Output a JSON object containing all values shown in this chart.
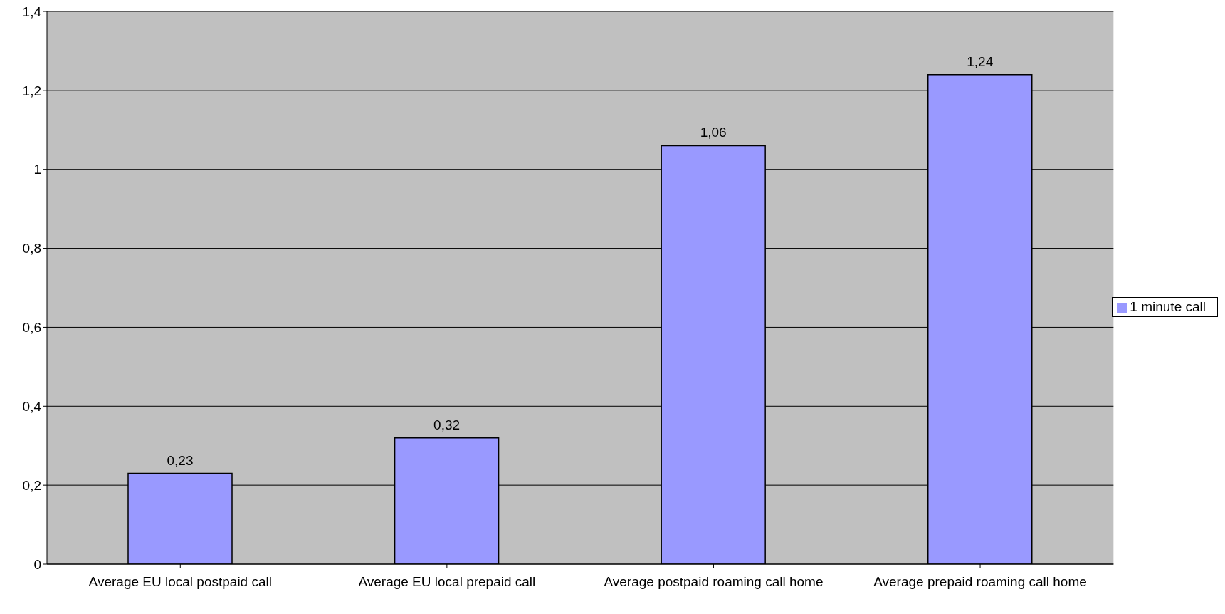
{
  "chart_data": {
    "type": "bar",
    "categories": [
      "Average EU local postpaid call",
      "Average EU local prepaid call",
      "Average postpaid roaming call home",
      "Average prepaid roaming call home"
    ],
    "series": [
      {
        "name": "1 minute call",
        "color": "#9999ff",
        "values": [
          0.23,
          0.32,
          1.06,
          1.24
        ]
      }
    ],
    "value_labels": [
      "0,23",
      "0,32",
      "1,06",
      "1,24"
    ],
    "ylim": [
      0,
      1.4
    ],
    "yticks": [
      0,
      {
        "value": 0.2,
        "label": "0,2"
      },
      {
        "value": 0.4,
        "label": "0,4"
      },
      {
        "value": 0.6,
        "label": "0,6"
      },
      {
        "value": 0.8,
        "label": "0,8"
      },
      1,
      {
        "value": 1.2,
        "label": "1,2"
      },
      {
        "value": 1.4,
        "label": "1,4"
      }
    ],
    "grid": "y",
    "legend": "right"
  }
}
